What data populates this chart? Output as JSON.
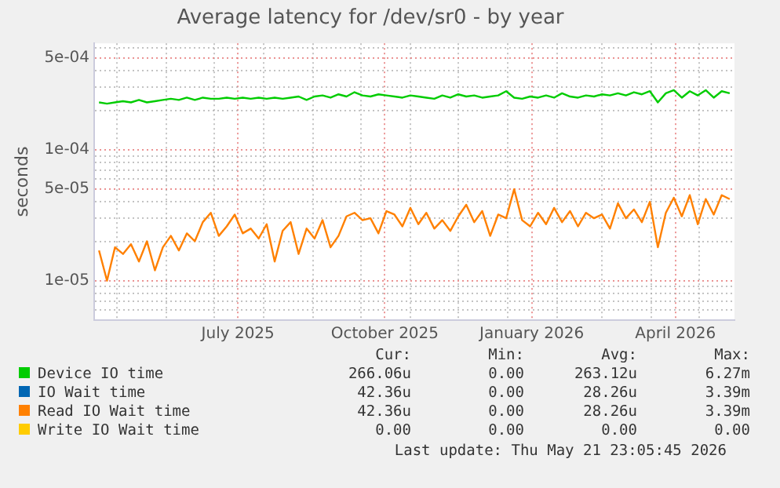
{
  "chart_data": {
    "type": "line",
    "title": "Average latency for /dev/sr0 - by year",
    "ylabel": "seconds",
    "log": "y",
    "grid": true,
    "legend": "bottom",
    "marker": "none",
    "line_style": "solid",
    "xlim": [
      "2025-04-17",
      "2026-05-23"
    ],
    "xticks": [
      {
        "value": "2025-05-01",
        "label": null
      },
      {
        "value": "2025-06-01",
        "label": null
      },
      {
        "value": "2025-07-01",
        "label": null
      },
      {
        "value": "2025-07-16",
        "label": "July 2025"
      },
      {
        "value": "2025-08-01",
        "label": null
      },
      {
        "value": "2025-09-01",
        "label": null
      },
      {
        "value": "2025-10-01",
        "label": null
      },
      {
        "value": "2025-10-16",
        "label": "October 2025"
      },
      {
        "value": "2025-11-01",
        "label": null
      },
      {
        "value": "2025-12-01",
        "label": null
      },
      {
        "value": "2026-01-01",
        "label": null
      },
      {
        "value": "2026-01-16",
        "label": "January 2026"
      },
      {
        "value": "2026-02-01",
        "label": null
      },
      {
        "value": "2026-03-01",
        "label": null
      },
      {
        "value": "2026-04-01",
        "label": null
      },
      {
        "value": "2026-04-16",
        "label": "April 2026"
      },
      {
        "value": "2026-05-01",
        "label": null
      }
    ],
    "ylim": [
      5e-06,
      0.00065
    ],
    "yticks": [
      {
        "value": 6e-06,
        "label": null
      },
      {
        "value": 7e-06,
        "label": null
      },
      {
        "value": 8e-06,
        "label": null
      },
      {
        "value": 9e-06,
        "label": null
      },
      {
        "value": 1e-05,
        "label": "1e-05"
      },
      {
        "value": 2e-05,
        "label": null
      },
      {
        "value": 3e-05,
        "label": null
      },
      {
        "value": 4e-05,
        "label": null
      },
      {
        "value": 5e-05,
        "label": "5e-05"
      },
      {
        "value": 6e-05,
        "label": null
      },
      {
        "value": 7e-05,
        "label": null
      },
      {
        "value": 8e-05,
        "label": null
      },
      {
        "value": 9e-05,
        "label": null
      },
      {
        "value": 0.0001,
        "label": "1e-04"
      },
      {
        "value": 0.0002,
        "label": null
      },
      {
        "value": 0.0003,
        "label": null
      },
      {
        "value": 0.0004,
        "label": null
      },
      {
        "value": 0.0005,
        "label": "5e-04"
      },
      {
        "value": 0.0006,
        "label": null
      }
    ],
    "x": [
      "2025-04-20",
      "2025-04-25",
      "2025-04-30",
      "2025-05-05",
      "2025-05-10",
      "2025-05-15",
      "2025-05-20",
      "2025-05-25",
      "2025-05-30",
      "2025-06-04",
      "2025-06-09",
      "2025-06-14",
      "2025-06-19",
      "2025-06-24",
      "2025-06-29",
      "2025-07-04",
      "2025-07-09",
      "2025-07-14",
      "2025-07-19",
      "2025-07-24",
      "2025-07-29",
      "2025-08-03",
      "2025-08-08",
      "2025-08-13",
      "2025-08-18",
      "2025-08-23",
      "2025-08-28",
      "2025-09-02",
      "2025-09-07",
      "2025-09-12",
      "2025-09-17",
      "2025-09-22",
      "2025-09-27",
      "2025-10-02",
      "2025-10-07",
      "2025-10-12",
      "2025-10-17",
      "2025-10-22",
      "2025-10-27",
      "2025-11-01",
      "2025-11-06",
      "2025-11-11",
      "2025-11-16",
      "2025-11-21",
      "2025-11-26",
      "2025-12-01",
      "2025-12-06",
      "2025-12-11",
      "2025-12-16",
      "2025-12-21",
      "2025-12-26",
      "2025-12-31",
      "2026-01-05",
      "2026-01-10",
      "2026-01-15",
      "2026-01-20",
      "2026-01-25",
      "2026-01-30",
      "2026-02-04",
      "2026-02-09",
      "2026-02-14",
      "2026-02-19",
      "2026-02-24",
      "2026-03-01",
      "2026-03-06",
      "2026-03-11",
      "2026-03-16",
      "2026-03-21",
      "2026-03-26",
      "2026-03-31",
      "2026-04-05",
      "2026-04-10",
      "2026-04-15",
      "2026-04-20",
      "2026-04-25",
      "2026-04-30",
      "2026-05-05",
      "2026-05-10",
      "2026-05-15",
      "2026-05-20"
    ],
    "series": [
      {
        "name": "Device IO time",
        "color": "#00cc00",
        "values": [
          0.00023,
          0.000225,
          0.00023,
          0.000235,
          0.00023,
          0.00024,
          0.00023,
          0.000235,
          0.00024,
          0.000245,
          0.00024,
          0.00025,
          0.00024,
          0.00025,
          0.000245,
          0.000245,
          0.00025,
          0.000245,
          0.00025,
          0.000245,
          0.00025,
          0.000245,
          0.00025,
          0.000245,
          0.00025,
          0.000255,
          0.00024,
          0.000255,
          0.00026,
          0.00025,
          0.000265,
          0.000255,
          0.000275,
          0.00026,
          0.000255,
          0.000265,
          0.00026,
          0.000255,
          0.00025,
          0.00026,
          0.000255,
          0.00025,
          0.000245,
          0.00026,
          0.00025,
          0.000265,
          0.000255,
          0.00026,
          0.00025,
          0.000255,
          0.00026,
          0.00028,
          0.00025,
          0.000245,
          0.000255,
          0.00025,
          0.00026,
          0.00025,
          0.00027,
          0.000255,
          0.00025,
          0.00026,
          0.000255,
          0.000265,
          0.00026,
          0.00027,
          0.00026,
          0.000275,
          0.000265,
          0.00028,
          0.00023,
          0.00027,
          0.000285,
          0.00025,
          0.00028,
          0.00026,
          0.000285,
          0.00025,
          0.00028,
          0.00027
        ]
      },
      {
        "name": "IO Wait time",
        "color": "#0066b3",
        "values": [
          null,
          null,
          null,
          null,
          null,
          null,
          null,
          null,
          null,
          null,
          null,
          null,
          null,
          null,
          null,
          null,
          null,
          null,
          null,
          null,
          null,
          null,
          null,
          null,
          null,
          null,
          null,
          null,
          null,
          null,
          null,
          null,
          null,
          null,
          null,
          null,
          null,
          null,
          null,
          null,
          null,
          null,
          null,
          null,
          null,
          null,
          null,
          null,
          null,
          null,
          null,
          null,
          null,
          null,
          null,
          null,
          null,
          null,
          null,
          null,
          null,
          null,
          null,
          null,
          null,
          null,
          null,
          null,
          null,
          null,
          null,
          null,
          null,
          null,
          null,
          null,
          null,
          null,
          null,
          null
        ]
      },
      {
        "name": "Read IO Wait time",
        "color": "#ff8000",
        "values": [
          1.7e-05,
          1e-05,
          1.8e-05,
          1.6e-05,
          1.9e-05,
          1.4e-05,
          2e-05,
          1.2e-05,
          1.8e-05,
          2.2e-05,
          1.7e-05,
          2.3e-05,
          2e-05,
          2.8e-05,
          3.3e-05,
          2.2e-05,
          2.6e-05,
          3.2e-05,
          2.3e-05,
          2.5e-05,
          2.1e-05,
          2.7e-05,
          1.4e-05,
          2.4e-05,
          2.8e-05,
          1.6e-05,
          2.5e-05,
          2.1e-05,
          2.9e-05,
          1.8e-05,
          2.2e-05,
          3.1e-05,
          3.3e-05,
          2.9e-05,
          3e-05,
          2.3e-05,
          3.4e-05,
          3.2e-05,
          2.6e-05,
          3.6e-05,
          2.7e-05,
          3.3e-05,
          2.5e-05,
          2.9e-05,
          2.4e-05,
          3.1e-05,
          3.8e-05,
          2.8e-05,
          3.4e-05,
          2.2e-05,
          3.2e-05,
          3e-05,
          5e-05,
          2.9e-05,
          2.6e-05,
          3.3e-05,
          2.7e-05,
          3.6e-05,
          2.8e-05,
          3.4e-05,
          2.6e-05,
          3.3e-05,
          3e-05,
          3.2e-05,
          2.5e-05,
          3.9e-05,
          3e-05,
          3.5e-05,
          2.8e-05,
          4e-05,
          1.8e-05,
          3.3e-05,
          4.3e-05,
          3.1e-05,
          4.5e-05,
          2.7e-05,
          4.2e-05,
          3.2e-05,
          4.5e-05,
          4.2e-05
        ]
      },
      {
        "name": "Write IO Wait time",
        "color": "#ffcc00",
        "values": [
          null,
          null,
          null,
          null,
          null,
          null,
          null,
          null,
          null,
          null,
          null,
          null,
          null,
          null,
          null,
          null,
          null,
          null,
          null,
          null,
          null,
          null,
          null,
          null,
          null,
          null,
          null,
          null,
          null,
          null,
          null,
          null,
          null,
          null,
          null,
          null,
          null,
          null,
          null,
          null,
          null,
          null,
          null,
          null,
          null,
          null,
          null,
          null,
          null,
          null,
          null,
          null,
          null,
          null,
          null,
          null,
          null,
          null,
          null,
          null,
          null,
          null,
          null,
          null,
          null,
          null,
          null,
          null,
          null,
          null,
          null,
          null,
          null,
          null,
          null,
          null,
          null,
          null,
          null,
          null
        ]
      }
    ],
    "annotations": [
      "Cur:",
      "Min:",
      "Avg:",
      "Max:",
      "266.06u",
      "0.00",
      "263.12u",
      "6.27m",
      "42.36u",
      "0.00",
      "28.26u",
      "3.39m",
      "42.36u",
      "0.00",
      "28.26u",
      "3.39m",
      "0.00",
      "0.00",
      "0.00",
      "0.00",
      "Last update: Thu May 21 23:05:45 2026"
    ]
  }
}
